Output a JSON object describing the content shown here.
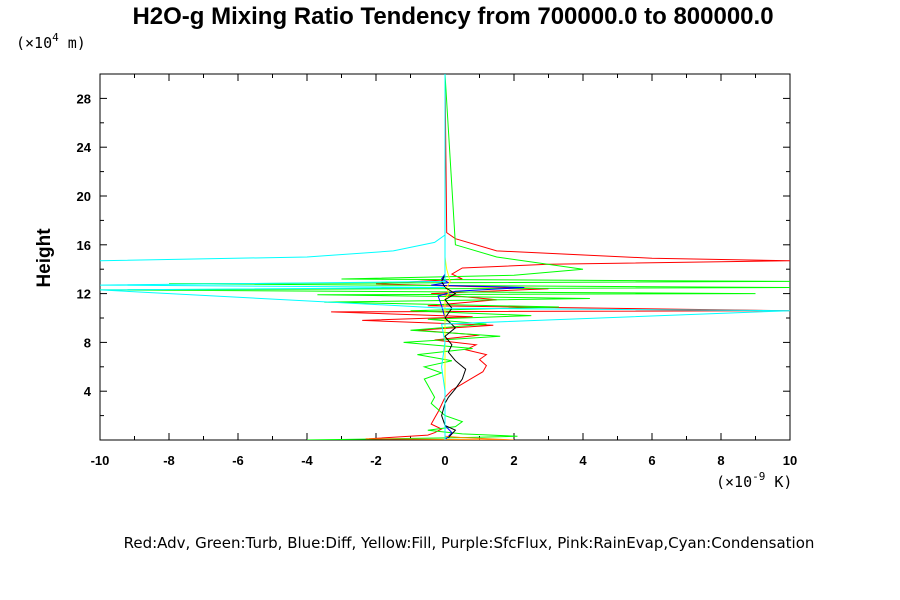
{
  "chart_data": {
    "type": "line",
    "title": "H2O-g Mixing Ratio Tendency from 700000.0 to 800000.0",
    "ylabel": "Height",
    "y_unit_base": "(×10",
    "y_unit_exp": "4",
    "y_unit_tail": " m)",
    "x_unit_base": "(×10",
    "x_unit_exp": "-9",
    "x_unit_tail": " K)",
    "legend_text": "Red:Adv, Green:Turb, Blue:Diff, Yellow:Fill, Purple:SfcFlux, Pink:RainEvap,Cyan:Condensation",
    "xlim": [
      -10,
      10
    ],
    "ylim": [
      0,
      30
    ],
    "xticks": [
      -10,
      -8,
      -6,
      -4,
      -2,
      0,
      2,
      4,
      6,
      8,
      10
    ],
    "yticks": [
      4,
      8,
      12,
      16,
      20,
      24,
      28
    ],
    "series": [
      {
        "color": "#ff0000",
        "points": [
          [
            -2.2,
            0.1
          ],
          [
            -0.5,
            0.4
          ],
          [
            -0.3,
            0.6
          ],
          [
            -0.1,
            0.9
          ],
          [
            -0.4,
            1.3
          ],
          [
            -0.3,
            1.8
          ],
          [
            -0.2,
            2.3
          ],
          [
            -0.1,
            2.9
          ],
          [
            0,
            3.5
          ],
          [
            0.2,
            4.1
          ],
          [
            0.5,
            4.6
          ],
          [
            0.8,
            5.1
          ],
          [
            1.1,
            5.6
          ],
          [
            1.2,
            6.1
          ],
          [
            1.0,
            6.6
          ],
          [
            1.2,
            7.0
          ],
          [
            0.6,
            7.4
          ],
          [
            0.9,
            7.8
          ],
          [
            -0.3,
            8.2
          ],
          [
            1.0,
            8.6
          ],
          [
            -0.8,
            9.0
          ],
          [
            1.4,
            9.4
          ],
          [
            -2.4,
            9.8
          ],
          [
            0.8,
            10.1
          ],
          [
            -3.3,
            10.5
          ],
          [
            10,
            10.6
          ],
          [
            -0.5,
            11.0
          ],
          [
            1.5,
            11.5
          ],
          [
            -0.4,
            12.0
          ],
          [
            3.0,
            12.4
          ],
          [
            -2.0,
            12.8
          ],
          [
            0.5,
            13.2
          ],
          [
            0.2,
            13.6
          ],
          [
            0.5,
            14.1
          ],
          [
            3.0,
            14.4
          ],
          [
            10,
            14.7
          ],
          [
            6.0,
            14.9
          ],
          [
            1.5,
            15.5
          ],
          [
            0.3,
            16.5
          ],
          [
            0.05,
            17.0
          ],
          [
            0,
            30
          ]
        ]
      },
      {
        "color": "#00ff00",
        "points": [
          [
            -4.0,
            0.0
          ],
          [
            0.5,
            0.2
          ],
          [
            2.1,
            0.3
          ],
          [
            0.5,
            0.5
          ],
          [
            -0.5,
            0.8
          ],
          [
            0.3,
            1.1
          ],
          [
            0.5,
            1.5
          ],
          [
            0,
            2.0
          ],
          [
            -0.2,
            2.5
          ],
          [
            -0.4,
            3.0
          ],
          [
            -0.3,
            3.5
          ],
          [
            -0.4,
            4.0
          ],
          [
            -0.5,
            4.5
          ],
          [
            -0.6,
            5.0
          ],
          [
            -0.1,
            5.5
          ],
          [
            -0.6,
            6.0
          ],
          [
            0.2,
            6.5
          ],
          [
            -0.8,
            7.0
          ],
          [
            0.8,
            7.5
          ],
          [
            -1.2,
            8.0
          ],
          [
            1.6,
            8.5
          ],
          [
            -1.0,
            9.0
          ],
          [
            1.2,
            9.5
          ],
          [
            -0.5,
            9.9
          ],
          [
            2.5,
            10.2
          ],
          [
            -1.0,
            10.6
          ],
          [
            3.3,
            10.9
          ],
          [
            -3.5,
            11.3
          ],
          [
            4.2,
            11.6
          ],
          [
            -3.7,
            11.9
          ],
          [
            9.0,
            12.0
          ],
          [
            -10,
            12.3
          ],
          [
            10,
            12.5
          ],
          [
            -8.0,
            12.8
          ],
          [
            10,
            13.0
          ],
          [
            -3.0,
            13.2
          ],
          [
            2.0,
            13.5
          ],
          [
            4.0,
            14.0
          ],
          [
            1.5,
            15.0
          ],
          [
            0.3,
            16.0
          ],
          [
            0,
            30
          ]
        ]
      },
      {
        "color": "#0000ff",
        "points": [
          [
            0,
            0.0
          ],
          [
            0.1,
            0.3
          ],
          [
            0.2,
            0.6
          ],
          [
            0.1,
            0.9
          ],
          [
            0,
            1.2
          ],
          [
            0,
            2.0
          ],
          [
            0,
            4.0
          ],
          [
            0,
            8.0
          ],
          [
            0,
            10.0
          ],
          [
            -0.1,
            11.0
          ],
          [
            -0.2,
            11.8
          ],
          [
            0.3,
            12.2
          ],
          [
            2.3,
            12.5
          ],
          [
            -0.4,
            12.7
          ],
          [
            0.1,
            12.9
          ],
          [
            -0.1,
            13.2
          ],
          [
            0,
            13.6
          ],
          [
            0,
            30
          ]
        ]
      },
      {
        "color": "#ffff00",
        "points": [
          [
            0,
            0
          ],
          [
            0,
            11.5
          ],
          [
            0.1,
            12.0
          ],
          [
            0.05,
            12.5
          ],
          [
            0.15,
            13.0
          ],
          [
            0.05,
            14.0
          ],
          [
            0,
            15.0
          ],
          [
            0,
            30
          ]
        ]
      },
      {
        "color": "#ff8000",
        "points": [
          [
            -2.3,
            0.1
          ],
          [
            2.0,
            0.0
          ],
          [
            0.5,
            0.2
          ],
          [
            0,
            0.3
          ]
        ]
      },
      {
        "color": "#000000",
        "points": [
          [
            0.1,
            0.2
          ],
          [
            0.3,
            0.8
          ],
          [
            0,
            1.2
          ],
          [
            -0.1,
            2.0
          ],
          [
            0,
            3.0
          ],
          [
            0.1,
            3.5
          ],
          [
            0.3,
            4.2
          ],
          [
            0.5,
            5.0
          ],
          [
            0.6,
            5.8
          ],
          [
            0.3,
            6.5
          ],
          [
            0.1,
            7.2
          ],
          [
            0.2,
            7.8
          ],
          [
            0,
            8.5
          ],
          [
            0.3,
            9.2
          ],
          [
            0,
            10.0
          ],
          [
            0.2,
            10.8
          ],
          [
            0,
            11.5
          ],
          [
            0.3,
            12.0
          ],
          [
            0,
            12.5
          ],
          [
            -0.1,
            13.0
          ],
          [
            0,
            13.5
          ],
          [
            0,
            30
          ]
        ]
      },
      {
        "color": "#00ffff",
        "points": [
          [
            -10,
            14.7
          ],
          [
            -4.0,
            15.0
          ],
          [
            -1.5,
            15.5
          ],
          [
            -0.3,
            16.2
          ],
          [
            0,
            16.8
          ],
          [
            0,
            30
          ]
        ]
      },
      {
        "color": "#00ffff",
        "points": [
          [
            0,
            0
          ],
          [
            0,
            4.0
          ],
          [
            -0.1,
            6.0
          ],
          [
            0,
            8.0
          ],
          [
            -0.1,
            9.5
          ],
          [
            10,
            10.6
          ],
          [
            0,
            10.8
          ],
          [
            -10,
            12.3
          ],
          [
            0,
            12.5
          ],
          [
            -10,
            12.7
          ],
          [
            0,
            13.0
          ],
          [
            0,
            16.8
          ]
        ]
      }
    ]
  }
}
